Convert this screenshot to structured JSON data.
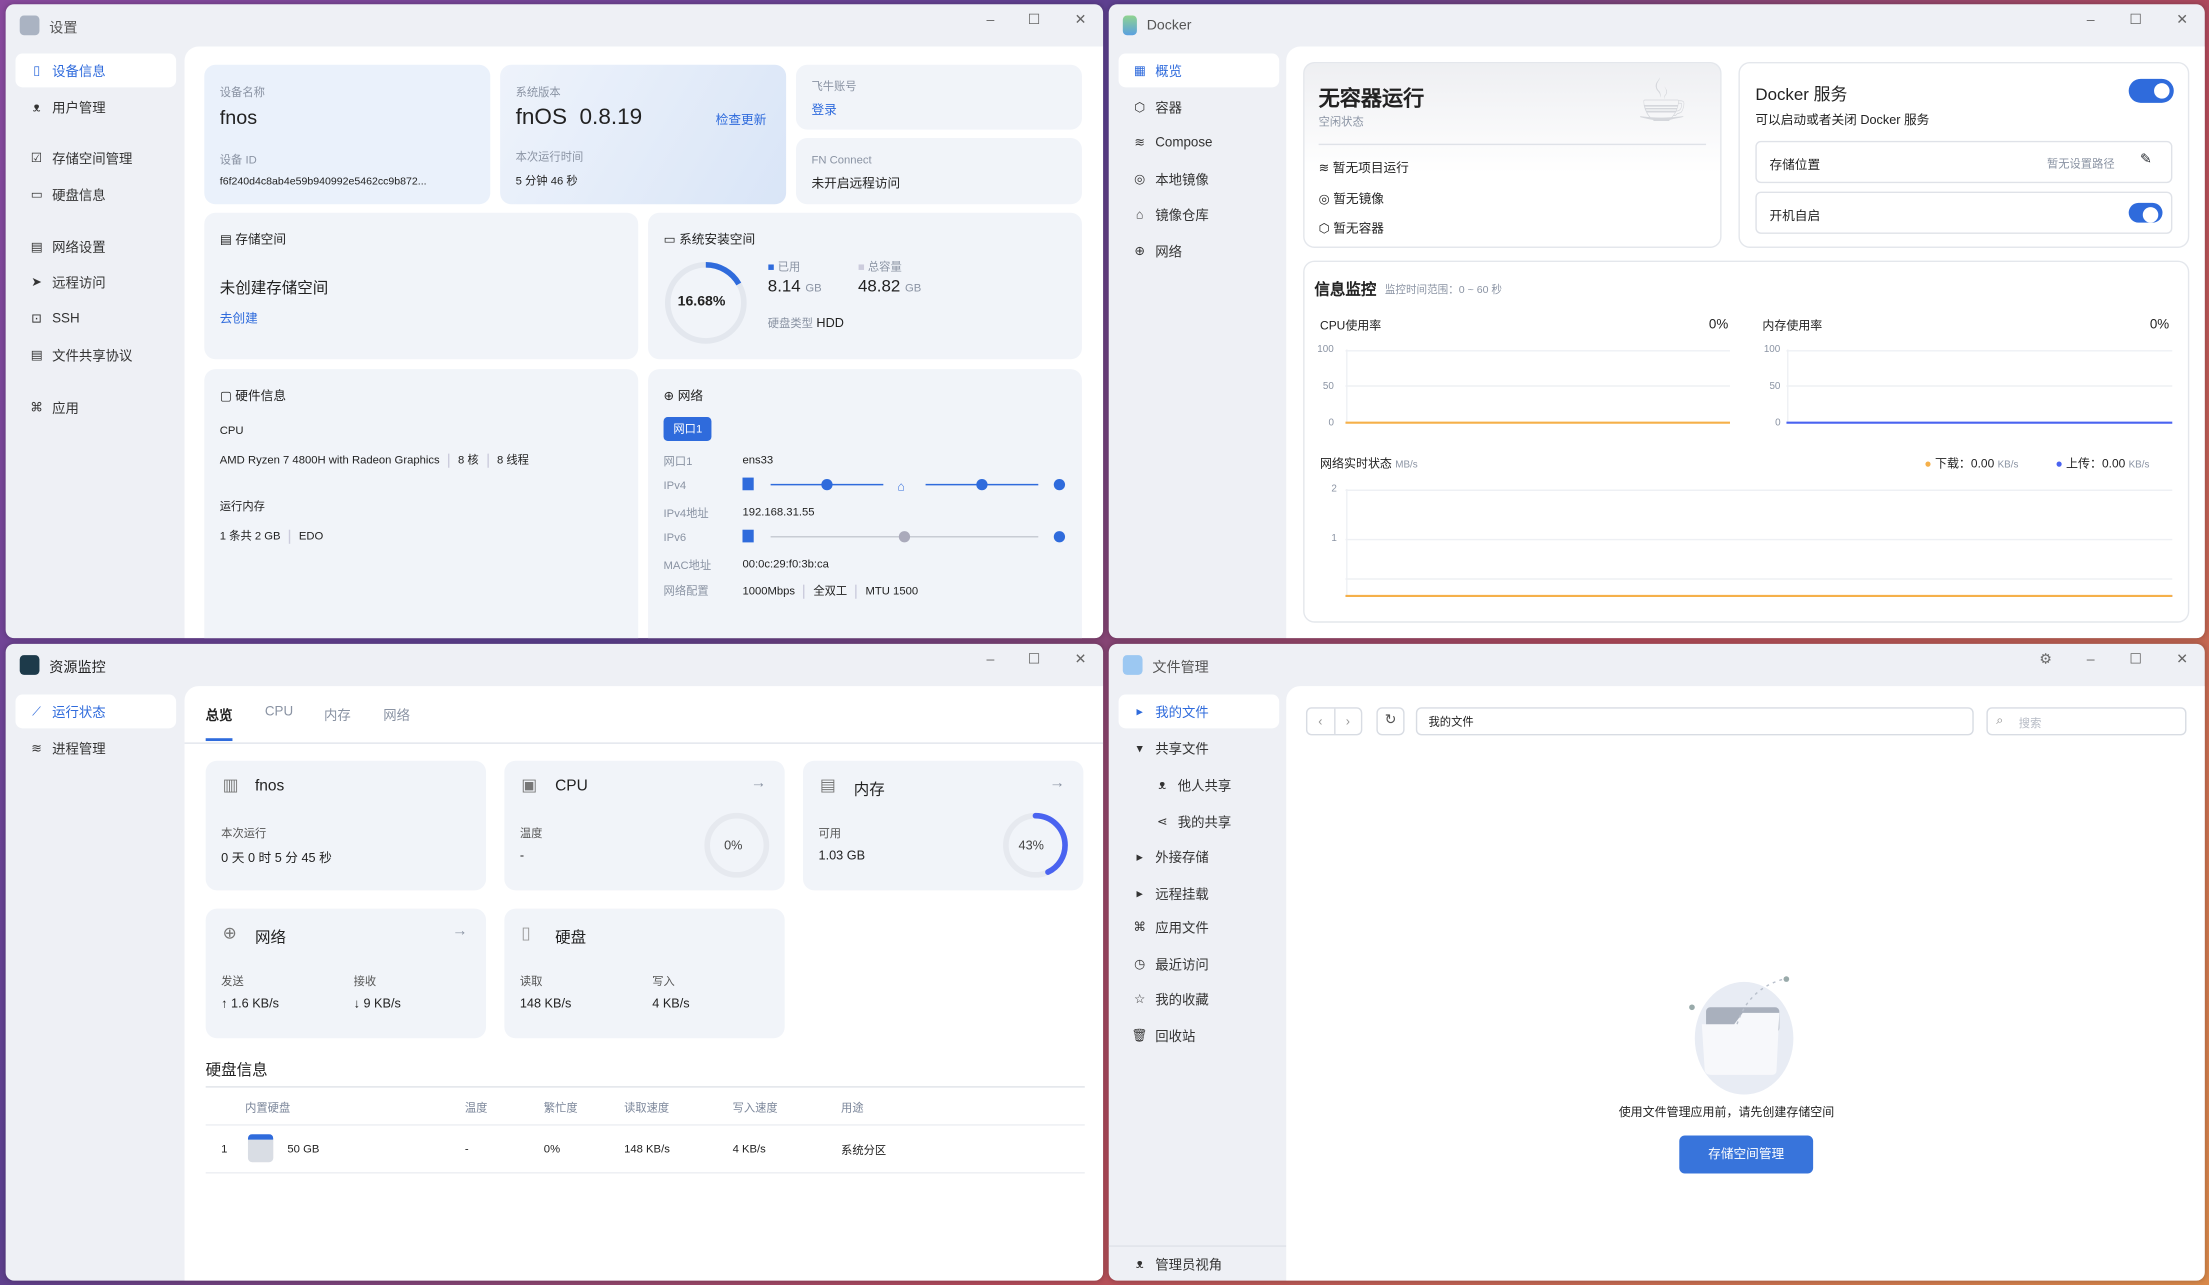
{
  "settings": {
    "title": "设置",
    "sidebar": [
      {
        "label": "设备信息",
        "icon": "device-icon"
      },
      {
        "label": "用户管理",
        "icon": "user-icon"
      },
      {
        "label": "存储空间管理",
        "icon": "storage-icon"
      },
      {
        "label": "硬盘信息",
        "icon": "disk-icon"
      },
      {
        "label": "网络设置",
        "icon": "network-icon"
      },
      {
        "label": "远程访问",
        "icon": "send-icon"
      },
      {
        "label": "SSH",
        "icon": "terminal-icon"
      },
      {
        "label": "文件共享协议",
        "icon": "file-icon"
      },
      {
        "label": "应用",
        "icon": "apps-icon"
      }
    ],
    "device": {
      "name_label": "设备名称",
      "name": "fnos",
      "id_label": "设备 ID",
      "id": "f6f240d4c8ab4e59b940992e5462cc9b872..."
    },
    "system": {
      "version_label": "系统版本",
      "os": "fnOS",
      "version": "0.8.19",
      "check_update": "检查更新",
      "uptime_label": "本次运行时间",
      "uptime": "5 分钟 46 秒"
    },
    "account": {
      "label": "飞牛账号",
      "login": "登录"
    },
    "fnconnect": {
      "label": "FN Connect",
      "value": "未开启远程访问"
    },
    "storage": {
      "title": "存储空间",
      "status": "未创建存储空间",
      "create": "去创建"
    },
    "sysdisk": {
      "title": "系统安装空间",
      "percent": "16.68%",
      "percent_value": 16.68,
      "used_label": "已用",
      "used": "8.14",
      "used_unit": "GB",
      "total_label": "总容量",
      "total": "48.82",
      "total_unit": "GB",
      "type_label": "硬盘类型",
      "type": "HDD"
    },
    "hardware": {
      "title": "硬件信息",
      "cpu_label": "CPU",
      "cpu": "AMD Ryzen 7 4800H with Radeon Graphics",
      "cores": "8 核",
      "threads": "8 线程",
      "mem_label": "运行内存",
      "mem": "1 条共 2 GB",
      "mem_type": "EDO"
    },
    "network": {
      "title": "网络",
      "port_tab": "网口1",
      "rows": [
        {
          "label": "网口1",
          "value": "ens33"
        },
        {
          "label": "IPv4",
          "value": ""
        },
        {
          "label": "IPv4地址",
          "value": "192.168.31.55"
        },
        {
          "label": "IPv6",
          "value": ""
        },
        {
          "label": "MAC地址",
          "value": "00:0c:29:f0:3b:ca"
        },
        {
          "label": "网络配置",
          "value": "1000Mbps"
        }
      ],
      "duplex": "全双工",
      "mtu": "MTU 1500"
    }
  },
  "docker": {
    "title": "Docker",
    "sidebar": [
      {
        "label": "概览"
      },
      {
        "label": "容器"
      },
      {
        "label": "Compose"
      },
      {
        "label": "本地镜像"
      },
      {
        "label": "镜像仓库"
      },
      {
        "label": "网络"
      }
    ],
    "status": {
      "title": "无容器运行",
      "subtitle": "空闲状态",
      "items": [
        "暂无项目运行",
        "暂无镜像",
        "暂无容器"
      ]
    },
    "service": {
      "title": "Docker 服务",
      "desc": "可以启动或者关闭 Docker 服务",
      "enabled": true,
      "storage_label": "存储位置",
      "storage_value": "暂无设置路径",
      "autostart_label": "开机自启",
      "autostart": true
    },
    "monitor": {
      "title": "信息监控",
      "range": "监控时间范围：0 ~ 60 秒",
      "cpu": {
        "label": "CPU使用率",
        "value": "0%",
        "ticks": [
          "100",
          "50",
          "0"
        ]
      },
      "mem": {
        "label": "内存使用率",
        "value": "0%",
        "ticks": [
          "100",
          "50",
          "0"
        ]
      },
      "net": {
        "label": "网络实时状态",
        "unit": "MB/s",
        "ticks": [
          "2",
          "1"
        ],
        "down_label": "下载：",
        "down": "0.00",
        "up_label": "上传：",
        "up": "0.00",
        "rate_unit": "KB/s"
      },
      "colors": {
        "cpu": "#f5b04a",
        "mem": "#4a63f0",
        "down": "#f5b04a",
        "up": "#4a63f0"
      }
    }
  },
  "monitor": {
    "title": "资源监控",
    "sidebar": [
      {
        "label": "运行状态"
      },
      {
        "label": "进程管理"
      }
    ],
    "tabs": [
      "总览",
      "CPU",
      "内存",
      "网络"
    ],
    "host": {
      "name": "fnos",
      "uptime_label": "本次运行",
      "uptime": "0 天 0 时 5 分 45 秒"
    },
    "cpu": {
      "name": "CPU",
      "temp_label": "温度",
      "temp": "-",
      "usage": "0%",
      "usage_value": 0
    },
    "mem": {
      "name": "内存",
      "avail_label": "可用",
      "avail": "1.03 GB",
      "usage": "43%",
      "usage_value": 43
    },
    "net": {
      "name": "网络",
      "send_label": "发送",
      "send": "↑ 1.6 KB/s",
      "recv_label": "接收",
      "recv": "↓ 9 KB/s"
    },
    "disk": {
      "name": "硬盘",
      "read_label": "读取",
      "read": "148 KB/s",
      "write_label": "写入",
      "write": "4 KB/s"
    },
    "disk_table": {
      "title": "硬盘信息",
      "headers": [
        "内置硬盘",
        "温度",
        "繁忙度",
        "读取速度",
        "写入速度",
        "用途"
      ],
      "rows": [
        {
          "index": "1",
          "size": "50 GB",
          "temp": "-",
          "busy": "0%",
          "read": "148 KB/s",
          "write": "4 KB/s",
          "usage": "系统分区"
        }
      ]
    }
  },
  "files": {
    "title": "文件管理",
    "sidebar": [
      {
        "label": "我的文件"
      },
      {
        "label": "共享文件"
      },
      {
        "label": "他人共享"
      },
      {
        "label": "我的共享"
      },
      {
        "label": "外接存储"
      },
      {
        "label": "远程挂载"
      },
      {
        "label": "应用文件"
      },
      {
        "label": "最近访问"
      },
      {
        "label": "我的收藏"
      },
      {
        "label": "回收站"
      }
    ],
    "admin_view": "管理员视角",
    "path": "我的文件",
    "search_placeholder": "搜索",
    "empty_text": "使用文件管理应用前，请先创建存储空间",
    "empty_button": "存储空间管理"
  },
  "window_controls": {
    "minimize": "–",
    "maximize": "☐",
    "close": "✕"
  }
}
